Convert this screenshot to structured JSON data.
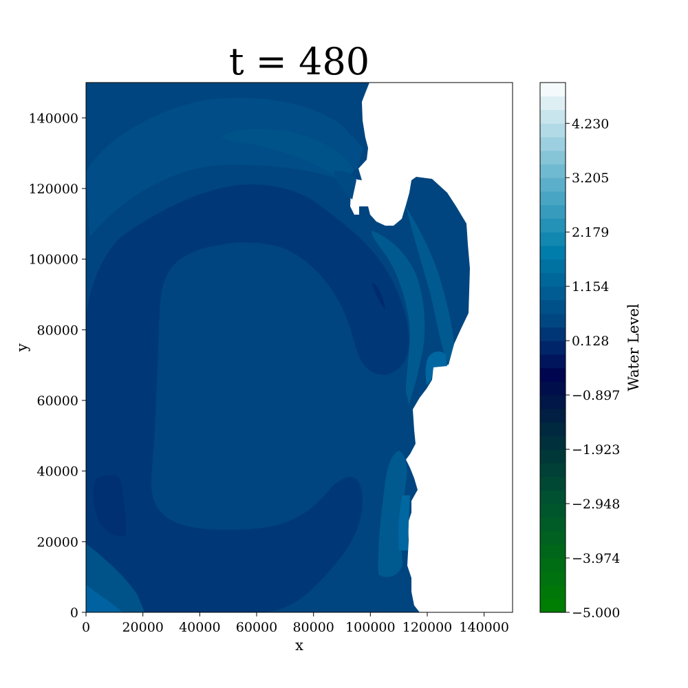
{
  "chart_data": {
    "type": "heatmap",
    "title": "t = 480",
    "xlabel": "x",
    "ylabel": "y",
    "xlim": [
      0,
      150000
    ],
    "ylim": [
      0,
      150000
    ],
    "x_ticks": [
      0,
      20000,
      40000,
      60000,
      80000,
      100000,
      120000,
      140000
    ],
    "y_ticks": [
      0,
      20000,
      40000,
      60000,
      80000,
      100000,
      120000,
      140000
    ],
    "x_tick_labels": [
      "0",
      "20000",
      "40000",
      "60000",
      "80000",
      "100000",
      "120000",
      "140000"
    ],
    "y_tick_labels": [
      "0",
      "20000",
      "40000",
      "60000",
      "80000",
      "100000",
      "120000",
      "140000"
    ],
    "colorbar": {
      "label": "Water Level",
      "range": [
        -5.0,
        5.0
      ],
      "levels": 39,
      "ticks": [
        -5.0,
        -3.974,
        -2.948,
        -1.923,
        -0.897,
        0.128,
        1.154,
        2.179,
        3.205,
        4.23
      ],
      "tick_labels": [
        "−5.000",
        "−3.974",
        "−2.948",
        "−1.923",
        "−0.897",
        "0.128",
        "1.154",
        "2.179",
        "3.205",
        "4.230"
      ],
      "colors": {
        "low": "#008000",
        "mid": "#000550",
        "high": "#ffffff"
      }
    },
    "grid": false
  }
}
